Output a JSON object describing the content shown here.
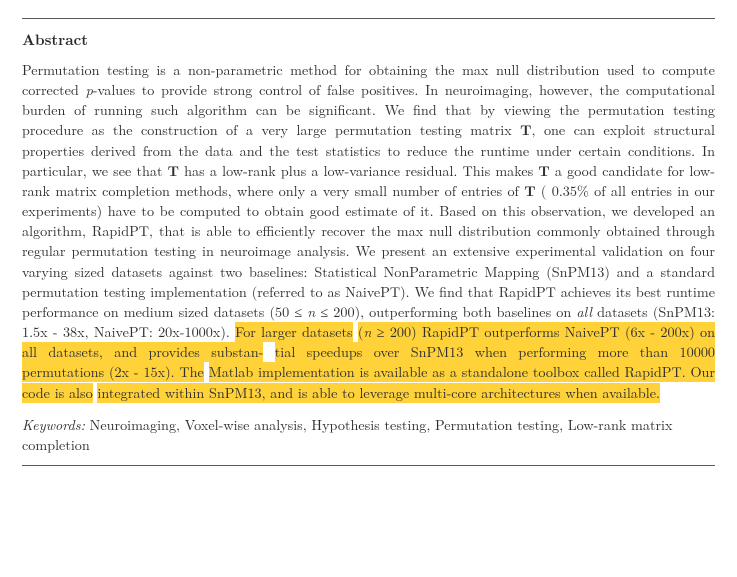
{
  "heading": "Abstract",
  "body_parts": [
    {
      "t": "Permutation testing is a non-parametric method for obtaining the max null distribution used to compute corrected "
    },
    {
      "t": "p",
      "cls": "italic"
    },
    {
      "t": "-values to provide strong control of false positives. In neuroimaging, however, the computational burden of running such algorithm can be significant. We find that by viewing the permutation testing procedure as the construction of a very large permutation testing matrix "
    },
    {
      "t": "T",
      "cls": "bold"
    },
    {
      "t": ", one can exploit structural properties derived from the data and the test statistics to reduce the runtime under certain conditions. In particular, we see that "
    },
    {
      "t": "T",
      "cls": "bold"
    },
    {
      "t": " has a low-rank plus a low-variance residual. This makes "
    },
    {
      "t": "T",
      "cls": "bold"
    },
    {
      "t": " a good candidate for low-rank matrix completion methods, where only a very small number of entries of "
    },
    {
      "t": "T",
      "cls": "bold"
    },
    {
      "t": " ( 0.35% of all entries in our experiments) have to be computed to obtain good estimate of it. Based on this observation, we developed an algorithm, RapidPT, that is able to efficiently recover the max null distribution commonly obtained through regular permutation testing in neuroimage analysis. We present an extensive experimental validation on four varying sized datasets against two baselines: Statistical NonParametric Mapping (SnPM13) and a standard permutation testing implementation (referred to as NaivePT). We find that RapidPT achieves its best runtime performance on medium sized datasets (50 ≤ "
    },
    {
      "t": "n",
      "cls": "italic"
    },
    {
      "t": " ≤ 200), outperforming both baselines on "
    },
    {
      "t": "all",
      "cls": "italic"
    },
    {
      "t": " datasets (SnPM13: 1.5x - 38x, NaivePT: 20x-1000x). "
    },
    {
      "t": "For larger datasets",
      "cls": "hl"
    },
    {
      "t": " "
    },
    {
      "t": "(",
      "cls": "hl"
    },
    {
      "t": "n",
      "cls": "hl italic"
    },
    {
      "t": " ≥ 200) RapidPT outperforms NaivePT (6x - 200x) on all datasets, and provides substan-",
      "cls": "hl"
    },
    {
      "t": " "
    },
    {
      "t": "tial speedups over SnPM13 when performing more than 10000 permutations (2x - 15x). The",
      "cls": "hl"
    },
    {
      "t": " "
    },
    {
      "t": "Matlab implementation is available as a standalone toolbox called RapidPT. Our code is also",
      "cls": "hl"
    },
    {
      "t": " "
    },
    {
      "t": "integrated within SnPM13, and is able to leverage multi-core architectures when available.",
      "cls": "hl"
    }
  ],
  "keywords_label": "Keywords:",
  "keywords_text": "   Neuroimaging, Voxel-wise analysis, Hypothesis testing, Permutation testing, Low-rank matrix completion",
  "colors": {
    "highlight": "#ffd23a",
    "text": "#2f2f2f",
    "rule": "#5a5a5a",
    "background": "#ffffff"
  }
}
